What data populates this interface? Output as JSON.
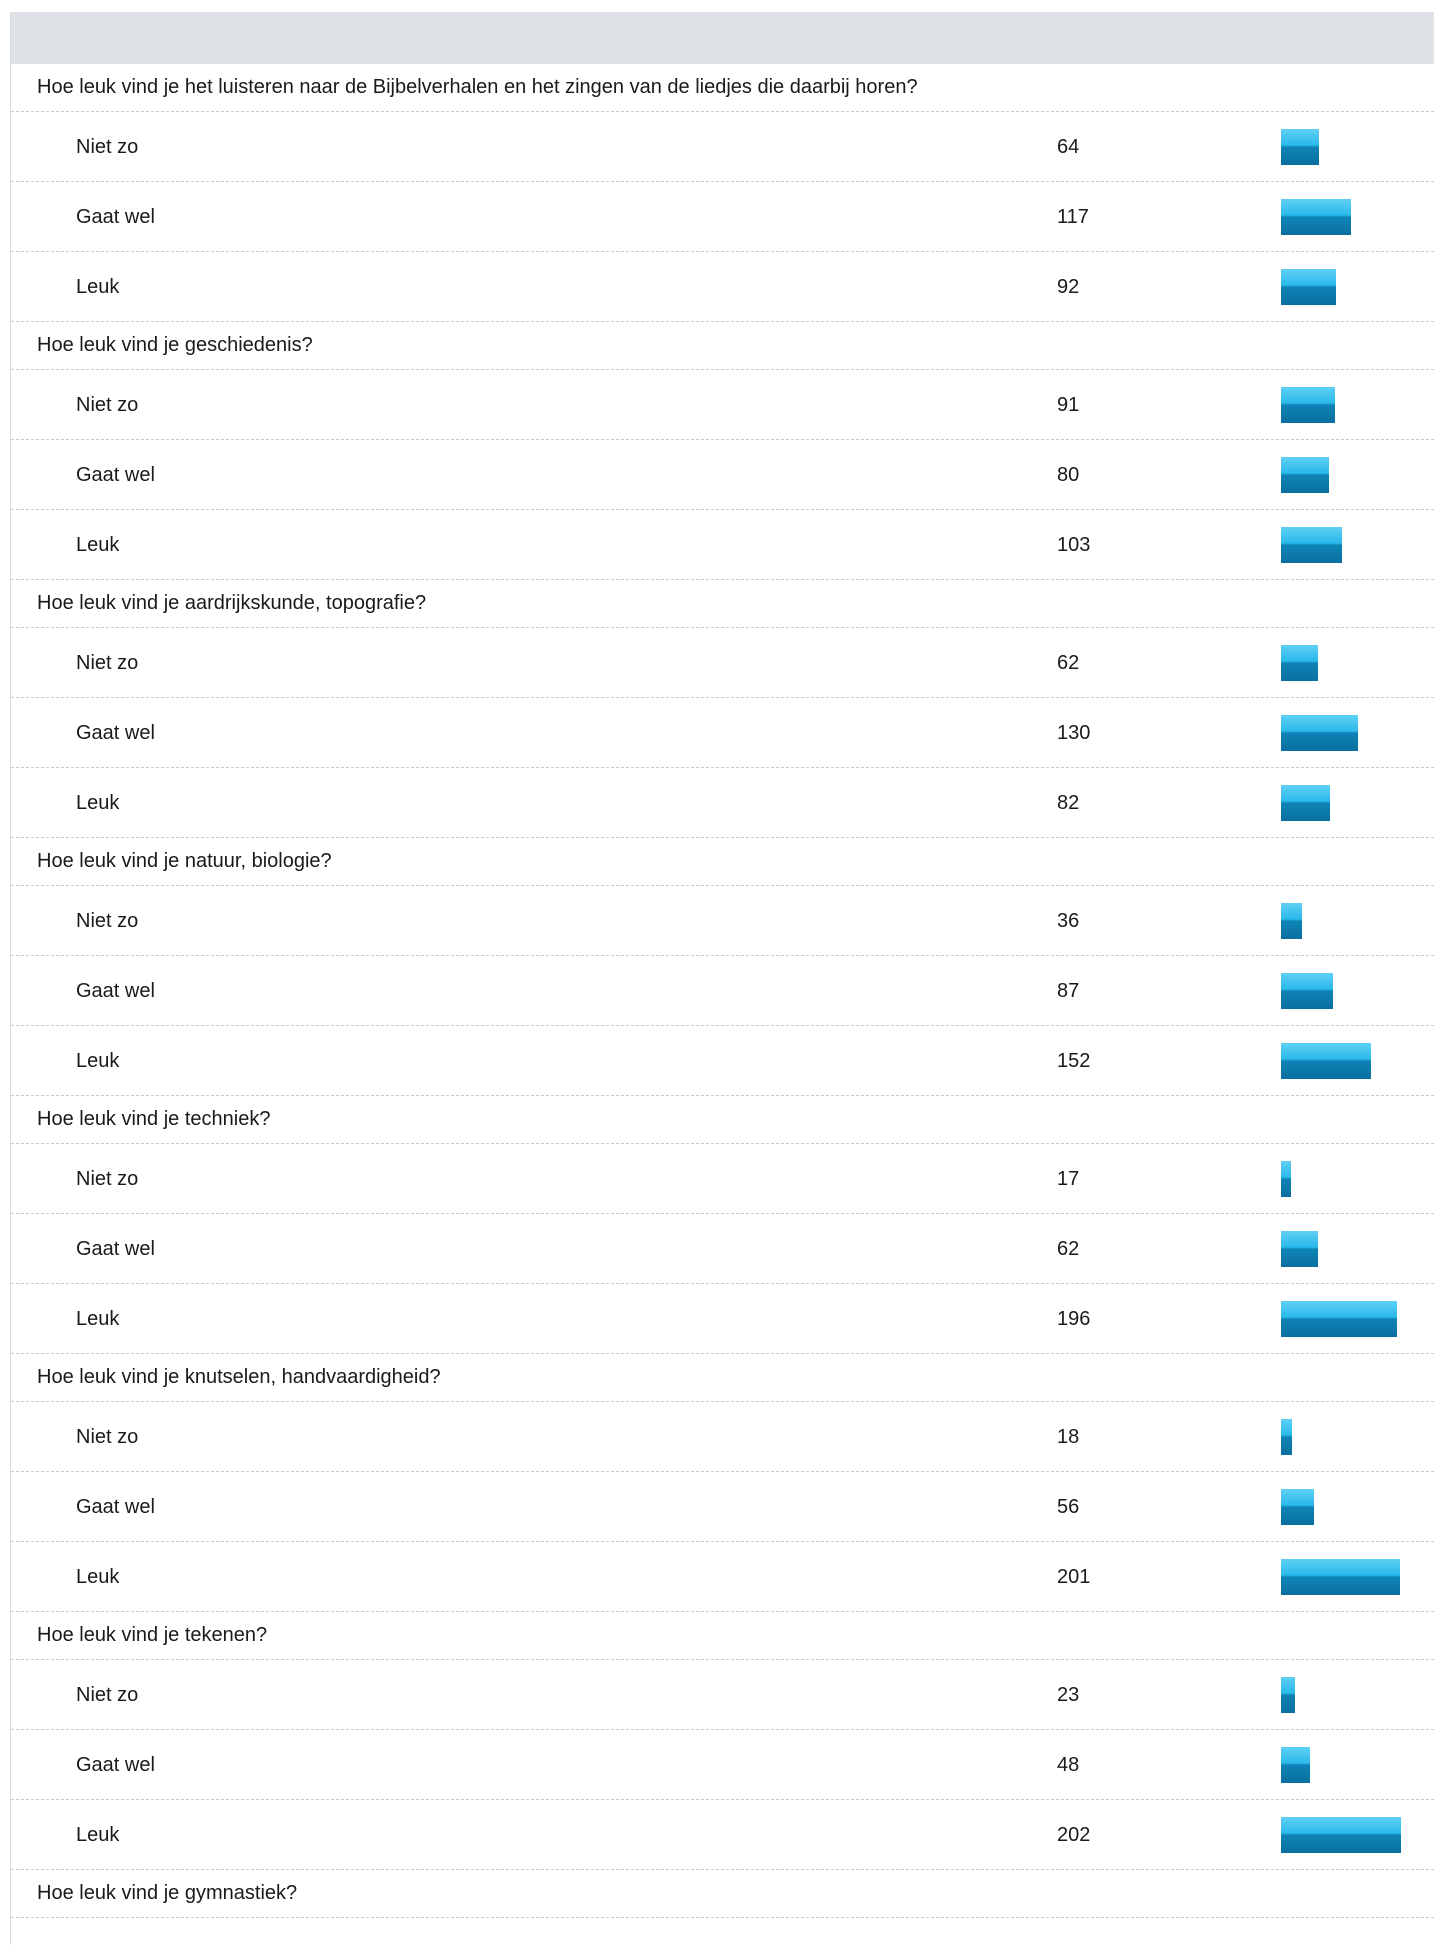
{
  "chart_data": {
    "type": "bar",
    "bar_color": "#2bb8ea",
    "max_value": 202,
    "groups": [
      {
        "question": "Hoe leuk vind je het luisteren naar de Bijbelverhalen en het zingen van de liedjes die daarbij horen?",
        "answers": [
          {
            "label": "Niet zo",
            "value": 64
          },
          {
            "label": "Gaat wel",
            "value": 117
          },
          {
            "label": "Leuk",
            "value": 92
          }
        ]
      },
      {
        "question": "Hoe leuk vind je geschiedenis?",
        "answers": [
          {
            "label": "Niet zo",
            "value": 91
          },
          {
            "label": "Gaat wel",
            "value": 80
          },
          {
            "label": "Leuk",
            "value": 103
          }
        ]
      },
      {
        "question": "Hoe leuk vind je aardrijkskunde, topografie?",
        "answers": [
          {
            "label": "Niet zo",
            "value": 62
          },
          {
            "label": "Gaat wel",
            "value": 130
          },
          {
            "label": "Leuk",
            "value": 82
          }
        ]
      },
      {
        "question": "Hoe leuk vind je natuur, biologie?",
        "answers": [
          {
            "label": "Niet zo",
            "value": 36
          },
          {
            "label": "Gaat wel",
            "value": 87
          },
          {
            "label": "Leuk",
            "value": 152
          }
        ]
      },
      {
        "question": "Hoe leuk vind je techniek?",
        "answers": [
          {
            "label": "Niet zo",
            "value": 17
          },
          {
            "label": "Gaat wel",
            "value": 62
          },
          {
            "label": "Leuk",
            "value": 196
          }
        ]
      },
      {
        "question": "Hoe leuk vind je knutselen, handvaardigheid?",
        "answers": [
          {
            "label": "Niet zo",
            "value": 18
          },
          {
            "label": "Gaat wel",
            "value": 56
          },
          {
            "label": "Leuk",
            "value": 201
          }
        ]
      },
      {
        "question": "Hoe leuk vind je tekenen?",
        "answers": [
          {
            "label": "Niet zo",
            "value": 23
          },
          {
            "label": "Gaat wel",
            "value": 48
          },
          {
            "label": "Leuk",
            "value": 202
          }
        ]
      },
      {
        "question": "Hoe leuk vind je gymnastiek?",
        "answers": []
      }
    ]
  }
}
